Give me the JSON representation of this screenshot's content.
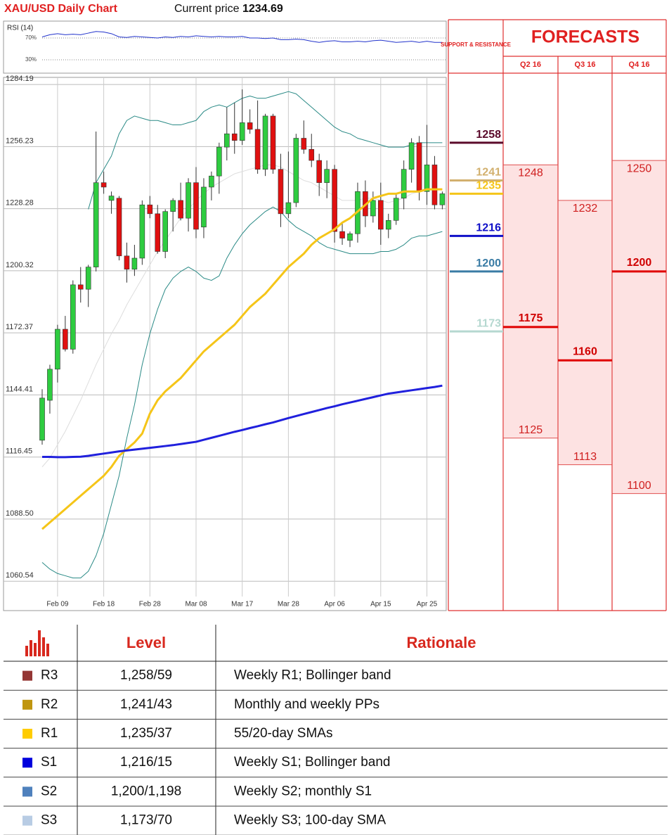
{
  "header": {
    "title": "XAU/USD Daily Chart",
    "price_label": "Current price",
    "price": 1234.69
  },
  "chart_data": [
    {
      "type": "line",
      "title": "RSI (14)",
      "ylim": [
        8,
        92
      ],
      "yticks": [
        {
          "value": 70,
          "label": "70%"
        },
        {
          "value": 30,
          "label": "30%"
        }
      ],
      "color": "#2233cc",
      "values": [
        72,
        76,
        78,
        76,
        77,
        76,
        79,
        82,
        81,
        78,
        72,
        71,
        73,
        72,
        71,
        70,
        72,
        71,
        73,
        72,
        74,
        73,
        72,
        73,
        72,
        72,
        73,
        70,
        70,
        69,
        70,
        67,
        67,
        68,
        67,
        64,
        62,
        64,
        65,
        63,
        63,
        64,
        63,
        65,
        66,
        64,
        62,
        63,
        64,
        62,
        64,
        62,
        62
      ]
    },
    {
      "type": "candlestick",
      "grid": true,
      "up_color": "#2ecc40",
      "down_color": "#e01010",
      "ylim": [
        1047.3,
        1287.4
      ],
      "yticks": [
        1284.19,
        1256.23,
        1228.28,
        1200.32,
        1172.37,
        1144.41,
        1116.45,
        {
          "value": 1088.5,
          "label": "1088.50"
        },
        1060.54
      ],
      "categories": [
        null,
        null,
        "Feb 09",
        null,
        null,
        null,
        null,
        null,
        "Feb 18",
        null,
        null,
        null,
        null,
        null,
        "Feb 28",
        null,
        null,
        null,
        null,
        null,
        "Mar 08",
        null,
        null,
        null,
        null,
        null,
        "Mar 17",
        null,
        null,
        null,
        null,
        null,
        "Mar 28",
        null,
        null,
        null,
        null,
        null,
        "Apr 06",
        null,
        null,
        null,
        null,
        null,
        "Apr 15",
        null,
        null,
        null,
        null,
        null,
        "Apr 25",
        null,
        null
      ],
      "open": [
        1124,
        1142,
        1156,
        1174,
        1165,
        1194,
        1192,
        1202,
        1240,
        1232,
        1233,
        1207,
        1201,
        1206,
        1230,
        1226,
        1209,
        1227,
        1232,
        1224,
        1240,
        1220,
        1238,
        1243,
        1256,
        1262,
        1259,
        1267,
        1264,
        1246,
        1270,
        1246,
        1226,
        1231,
        1260,
        1255,
        1250,
        1240,
        1246,
        1218,
        1214,
        1217,
        1236,
        1225,
        1232,
        1219,
        1223,
        1233,
        1246,
        1258,
        1236,
        1248,
        1230
      ],
      "high": [
        1147,
        1158,
        1176,
        1180,
        1196,
        1202,
        1203,
        1263,
        1245,
        1236,
        1234,
        1213,
        1212,
        1232,
        1234,
        1230,
        1228,
        1233,
        1240,
        1242,
        1247,
        1242,
        1245,
        1258,
        1274,
        1276,
        1282,
        1273,
        1277,
        1271,
        1271,
        1253,
        1254,
        1262,
        1268,
        1262,
        1253,
        1250,
        1248,
        1222,
        1218,
        1240,
        1241,
        1236,
        1240,
        1226,
        1235,
        1250,
        1260,
        1261,
        1266,
        1252,
        1236
      ],
      "low": [
        1122,
        1136,
        1150,
        1164,
        1163,
        1186,
        1184,
        1200,
        1235,
        1226,
        1205,
        1195,
        1198,
        1203,
        1224,
        1208,
        1206,
        1218,
        1223,
        1218,
        1215,
        1215,
        1232,
        1235,
        1250,
        1253,
        1257,
        1262,
        1244,
        1243,
        1244,
        1220,
        1224,
        1229,
        1253,
        1247,
        1234,
        1233,
        1213,
        1212,
        1211,
        1213,
        1220,
        1222,
        1212,
        1215,
        1221,
        1228,
        1240,
        1232,
        1230,
        1228,
        1228
      ],
      "close": [
        1143,
        1156,
        1174,
        1165,
        1194,
        1192,
        1202,
        1240,
        1238,
        1234,
        1207,
        1201,
        1206,
        1230,
        1226,
        1209,
        1227,
        1232,
        1224,
        1240,
        1219,
        1238,
        1243,
        1256,
        1262,
        1259,
        1267,
        1264,
        1246,
        1270,
        1246,
        1226,
        1231,
        1260,
        1255,
        1250,
        1240,
        1246,
        1218,
        1215,
        1217,
        1236,
        1225,
        1232,
        1219,
        1223,
        1233,
        1246,
        1258,
        1236,
        1248,
        1230,
        1235
      ],
      "lines": [
        {
          "color": "#dddddd",
          "values": [
            1112,
            1116,
            1122,
            1128,
            1135,
            1142,
            1150,
            1158,
            1165,
            1172,
            1178,
            1185,
            1191,
            1197,
            1203,
            1209,
            1214,
            1219,
            1224,
            1228,
            1232,
            1235,
            1238,
            1240,
            1242,
            1244,
            1245,
            1246,
            1247,
            1248,
            1248,
            1247,
            1245,
            1243,
            1241,
            1240,
            1238,
            1236,
            1234,
            1232,
            1232,
            1232,
            1233,
            1233,
            1232,
            1231,
            1232,
            1233,
            1235,
            1236,
            1237,
            1237,
            1237
          ]
        },
        {
          "color": "#2a8a86",
          "values": [
            1069,
            1066,
            1064,
            1063,
            1062,
            1062,
            1065,
            1072,
            1082,
            1095,
            1108,
            1125,
            1140,
            1158,
            1172,
            1183,
            1192,
            1197,
            1200,
            1202,
            1200,
            1197,
            1196,
            1198,
            1206,
            1212,
            1217,
            1221,
            1224,
            1227,
            1229,
            1227,
            1223,
            1220,
            1218,
            1216,
            1213,
            1211,
            1210,
            1209,
            1208,
            1208,
            1208,
            1208,
            1209,
            1209,
            1210,
            1212,
            1215,
            1216,
            1216,
            1217,
            1218
          ]
        },
        {
          "color": "#2a8a86",
          "values": [
            null,
            null,
            null,
            null,
            null,
            null,
            1228,
            1240,
            1246,
            1252,
            1262,
            1268,
            1270,
            1269,
            1268,
            1268,
            1267,
            1266,
            1266,
            1267,
            1268,
            1272,
            1274,
            1275,
            1274,
            1276,
            1278,
            1279,
            1278,
            1278,
            1279,
            1280,
            1281,
            1280,
            1277,
            1274,
            1271,
            1268,
            1265,
            1263,
            1262,
            1260,
            1259,
            1258,
            1257,
            1256,
            1256,
            1256,
            1257,
            1258,
            1258,
            1258,
            1258
          ]
        },
        {
          "color": "#f5c518",
          "values": [
            1084,
            1087,
            1090,
            1093,
            1096,
            1099,
            1102,
            1105,
            1108,
            1112,
            1117,
            1120,
            1123,
            1127,
            1136,
            1142,
            1146,
            1149,
            1152,
            1156,
            1160,
            1164,
            1167,
            1170,
            1173,
            1176,
            1180,
            1184,
            1187,
            1190,
            1194,
            1198,
            1202,
            1205,
            1208,
            1212,
            1215,
            1217,
            1219,
            1222,
            1224,
            1227,
            1230,
            1233,
            1234,
            1235,
            1235,
            1236,
            1236,
            1236,
            1237,
            1237,
            1237
          ]
        },
        {
          "color": "#2020dd",
          "values": [
            1116.5,
            1116.5,
            1116.4,
            1116.4,
            1116.5,
            1116.6,
            1117,
            1117.5,
            1118,
            1118.5,
            1119,
            1119.4,
            1119.8,
            1120.2,
            1120.6,
            1121,
            1121.4,
            1121.8,
            1122.3,
            1122.8,
            1123.3,
            1124.2,
            1125.1,
            1126,
            1126.9,
            1127.8,
            1128.6,
            1129.5,
            1130.3,
            1131.2,
            1132,
            1133,
            1134,
            1134.9,
            1135.8,
            1136.7,
            1137.6,
            1138.5,
            1139.3,
            1140.2,
            1141,
            1141.8,
            1142.6,
            1143.4,
            1144.2,
            1145,
            1145.5,
            1146,
            1146.5,
            1147,
            1147.5,
            1148,
            1148.6
          ]
        }
      ],
      "levels_title": "SUPPORT & RESISTANCE",
      "levels": [
        {
          "value": 1258,
          "color": "#5a0a2a"
        },
        {
          "value": 1241,
          "color": "#d2b06e"
        },
        {
          "value": 1235,
          "color": "#f5c518"
        },
        {
          "value": 1216,
          "color": "#1010c8"
        },
        {
          "value": 1200,
          "color": "#3a7ca5"
        },
        {
          "value": 1173,
          "color": "#b5d8d0"
        }
      ]
    }
  ],
  "forecast": {
    "title": "FORECASTS",
    "columns": [
      {
        "label": "Q2 16",
        "high": 1248,
        "mid": 1175,
        "low": 1125
      },
      {
        "label": "Q3 16",
        "high": 1232,
        "mid": 1160,
        "low": 1113
      },
      {
        "label": "Q4 16",
        "high": 1250,
        "mid": 1200,
        "low": 1100
      }
    ]
  },
  "table": {
    "headers": [
      "Level",
      "Rationale"
    ],
    "rows": [
      {
        "label": "R3",
        "color": "#943634",
        "level": "1,258/59",
        "rationale": "Weekly R1; Bollinger band"
      },
      {
        "label": "R2",
        "color": "#c0960f",
        "level": "1,241/43",
        "rationale": "Monthly and weekly PPs"
      },
      {
        "label": "R1",
        "color": "#ffcc00",
        "level": "1,235/37",
        "rationale": "55/20-day SMAs"
      },
      {
        "label": "S1",
        "color": "#0000dd",
        "level": "1,216/15",
        "rationale": "Weekly S1; Bollinger band"
      },
      {
        "label": "S2",
        "color": "#4f81bd",
        "level": "1,200/1,198",
        "rationale": "Weekly S2; monthly S1"
      },
      {
        "label": "S3",
        "color": "#b8cce4",
        "level": "1,173/70",
        "rationale": "Weekly S3; 100-day SMA"
      }
    ]
  }
}
